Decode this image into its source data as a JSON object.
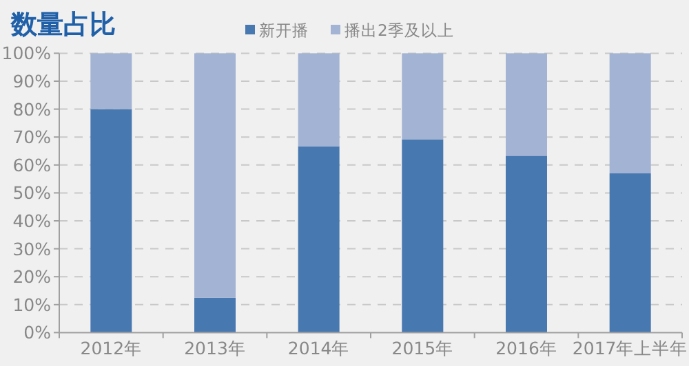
{
  "chart_data": {
    "type": "bar",
    "title": "数量占比",
    "stacked": true,
    "categories": [
      "2012年",
      "2013年",
      "2014年",
      "2015年",
      "2016年",
      "2017年上半年"
    ],
    "series": [
      {
        "name": "新开播",
        "color": "#4878b0",
        "values": [
          80,
          12.5,
          66.7,
          69.2,
          63.3,
          57
        ]
      },
      {
        "name": "播出2季及以上",
        "color": "#a3b3d3",
        "values": [
          20,
          87.5,
          33.3,
          30.8,
          36.7,
          43
        ]
      }
    ],
    "ylim": [
      0,
      100
    ],
    "yticks": [
      {
        "value": 0,
        "label": "0%"
      },
      {
        "value": 10,
        "label": "10%"
      },
      {
        "value": 20,
        "label": "20%"
      },
      {
        "value": 30,
        "label": "30%"
      },
      {
        "value": 40,
        "label": "40%"
      },
      {
        "value": 50,
        "label": "50%"
      },
      {
        "value": 60,
        "label": "60%"
      },
      {
        "value": 70,
        "label": "70%"
      },
      {
        "value": 80,
        "label": "80%"
      },
      {
        "value": 90,
        "label": "90%"
      },
      {
        "value": 100,
        "label": "100%"
      }
    ],
    "grid": "y",
    "legend": "top"
  }
}
